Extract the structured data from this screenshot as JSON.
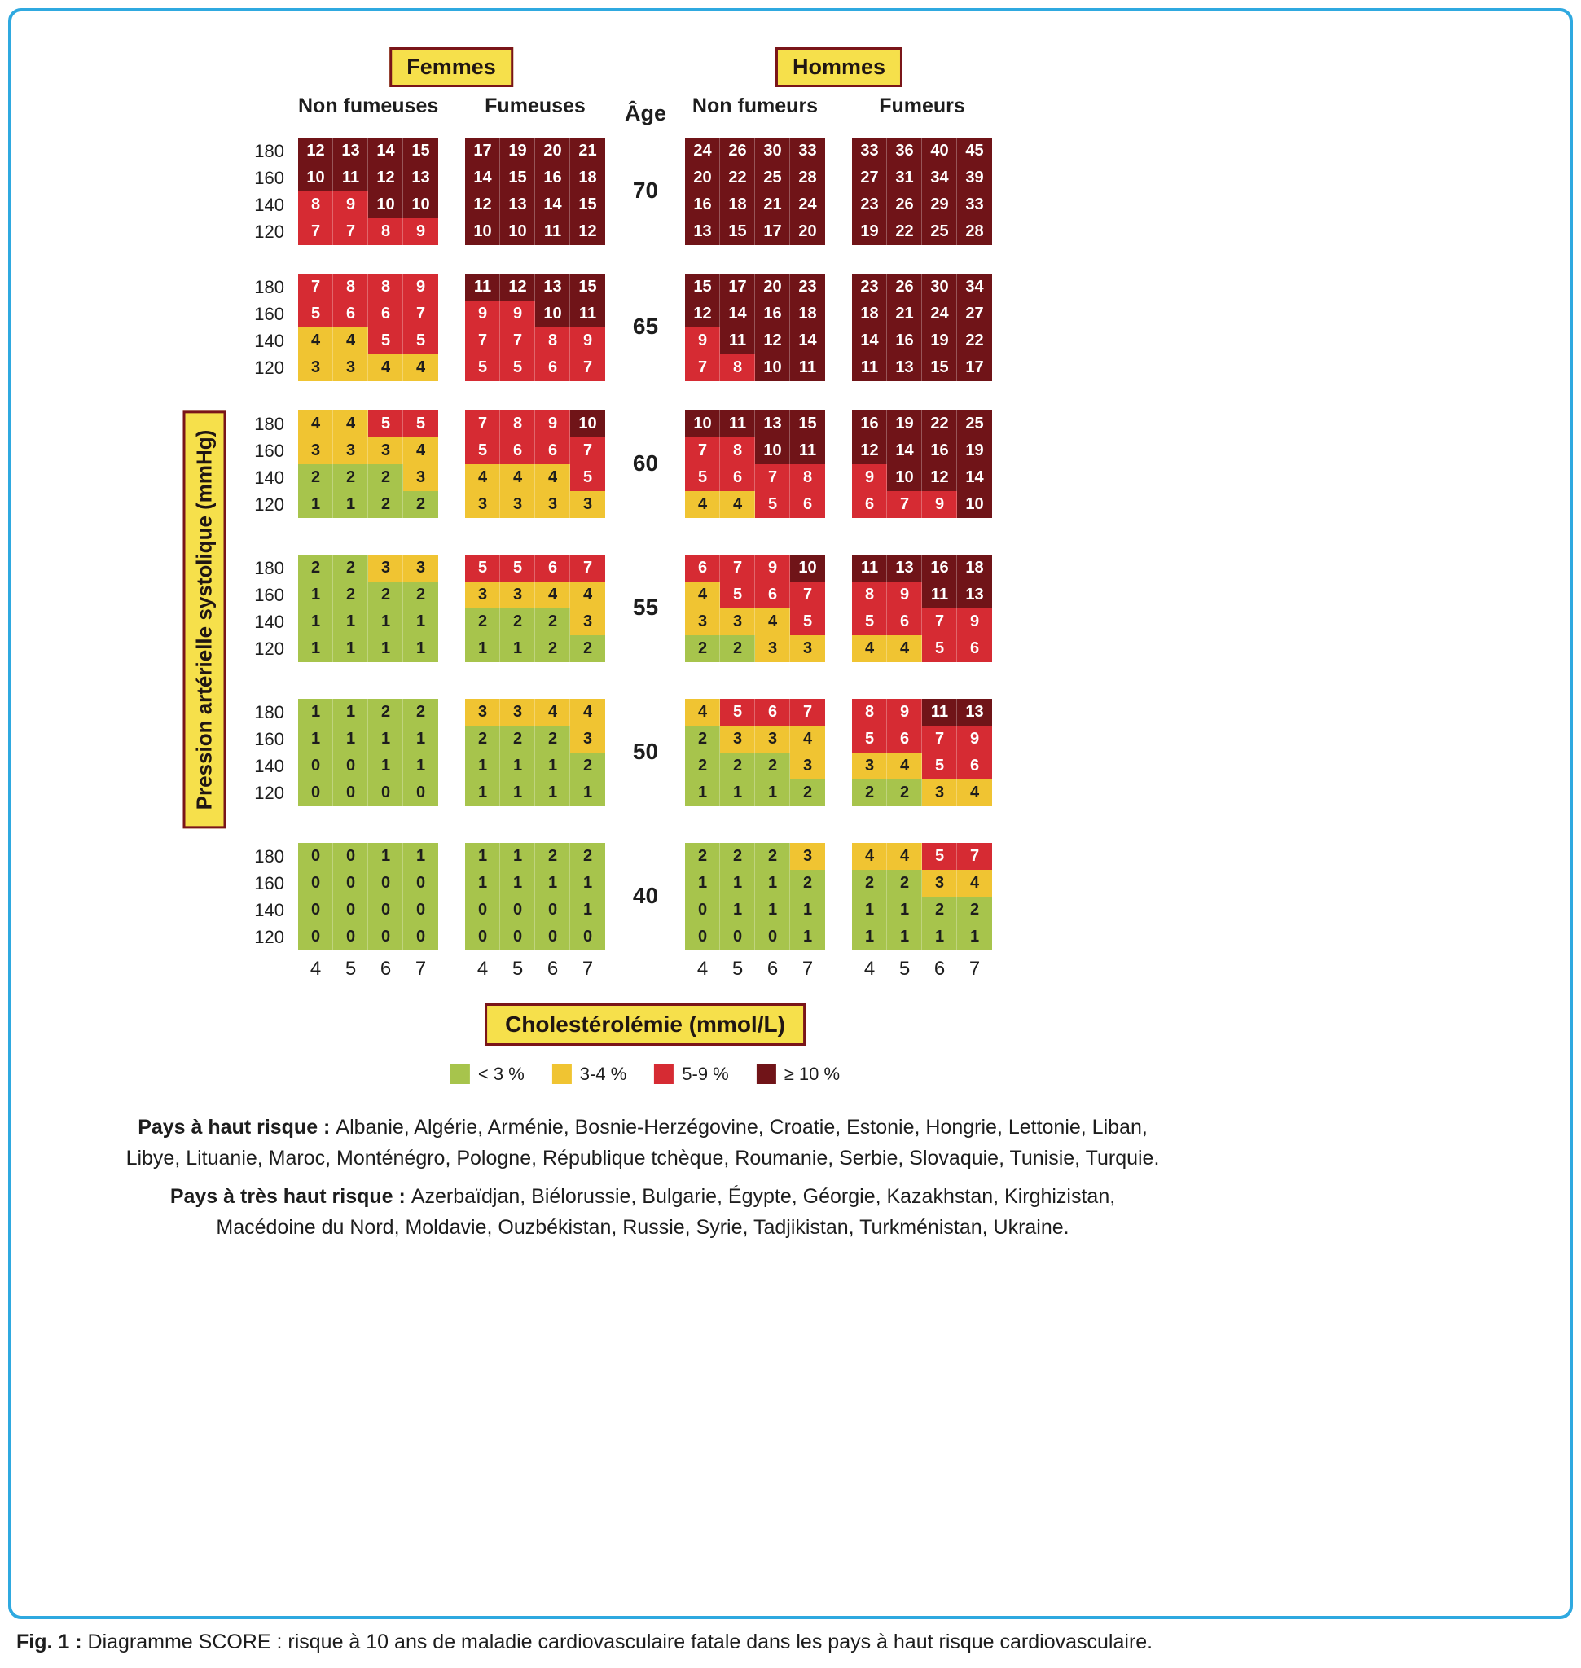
{
  "header": {
    "femmes": "Femmes",
    "hommes": "Hommes",
    "age": "Âge",
    "columns": [
      "Non fumeuses",
      "Fumeuses",
      "Non fumeurs",
      "Fumeurs"
    ]
  },
  "axes": {
    "y_label": "Pression artérielle systolique (mmHg)",
    "x_label": "Cholestérolémie (mmol/L)"
  },
  "legend": {
    "items": [
      {
        "label": "< 3 %",
        "color": "#a7c44c",
        "text_color": "#1d1d1d"
      },
      {
        "label": "3-4 %",
        "color": "#f0c432",
        "text_color": "#1d1d1d"
      },
      {
        "label": "5-9 %",
        "color": "#d62b33",
        "text_color": "#ffffff"
      },
      {
        "label": "≥ 10 %",
        "color": "#701418",
        "text_color": "#ffffff"
      }
    ]
  },
  "chart_data": {
    "type": "heatmap",
    "title": "Diagramme SCORE : risque à 10 ans de maladie cardiovasculaire fatale",
    "x_label": "Cholestérolémie (mmol/L)",
    "y_label": "Pression artérielle systolique (mmHg)",
    "cholesterol_mmol_l": [
      4,
      5,
      6,
      7
    ],
    "systolic_bp_mmhg": [
      180,
      160,
      140,
      120
    ],
    "ages": [
      70,
      65,
      60,
      55,
      50,
      40
    ],
    "groups": [
      "Femmes non fumeuses",
      "Femmes fumeuses",
      "Hommes non fumeurs",
      "Hommes fumeurs"
    ],
    "risk_bins": [
      "< 3 %",
      "3-4 %",
      "5-9 %",
      "≥ 10 %"
    ],
    "values": [
      {
        "age": 70,
        "grids": [
          [
            [
              12,
              13,
              14,
              15
            ],
            [
              10,
              11,
              12,
              13
            ],
            [
              8,
              9,
              10,
              10
            ],
            [
              7,
              7,
              8,
              9
            ]
          ],
          [
            [
              17,
              19,
              20,
              21
            ],
            [
              14,
              15,
              16,
              18
            ],
            [
              12,
              13,
              14,
              15
            ],
            [
              10,
              10,
              11,
              12
            ]
          ],
          [
            [
              24,
              26,
              30,
              33
            ],
            [
              20,
              22,
              25,
              28
            ],
            [
              16,
              18,
              21,
              24
            ],
            [
              13,
              15,
              17,
              20
            ]
          ],
          [
            [
              33,
              36,
              40,
              45
            ],
            [
              27,
              31,
              34,
              39
            ],
            [
              23,
              26,
              29,
              33
            ],
            [
              19,
              22,
              25,
              28
            ]
          ]
        ]
      },
      {
        "age": 65,
        "grids": [
          [
            [
              7,
              8,
              8,
              9
            ],
            [
              5,
              6,
              6,
              7
            ],
            [
              4,
              4,
              5,
              5
            ],
            [
              3,
              3,
              4,
              4
            ]
          ],
          [
            [
              11,
              12,
              13,
              15
            ],
            [
              9,
              9,
              10,
              11
            ],
            [
              7,
              7,
              8,
              9
            ],
            [
              5,
              5,
              6,
              7
            ]
          ],
          [
            [
              15,
              17,
              20,
              23
            ],
            [
              12,
              14,
              16,
              18
            ],
            [
              9,
              11,
              12,
              14
            ],
            [
              7,
              8,
              10,
              11
            ]
          ],
          [
            [
              23,
              26,
              30,
              34
            ],
            [
              18,
              21,
              24,
              27
            ],
            [
              14,
              16,
              19,
              22
            ],
            [
              11,
              13,
              15,
              17
            ]
          ]
        ]
      },
      {
        "age": 60,
        "grids": [
          [
            [
              4,
              4,
              5,
              5
            ],
            [
              3,
              3,
              3,
              4
            ],
            [
              2,
              2,
              2,
              3
            ],
            [
              1,
              1,
              2,
              2
            ]
          ],
          [
            [
              7,
              8,
              9,
              10
            ],
            [
              5,
              6,
              6,
              7
            ],
            [
              4,
              4,
              4,
              5
            ],
            [
              3,
              3,
              3,
              3
            ]
          ],
          [
            [
              10,
              11,
              13,
              15
            ],
            [
              7,
              8,
              10,
              11
            ],
            [
              5,
              6,
              7,
              8
            ],
            [
              4,
              4,
              5,
              6
            ]
          ],
          [
            [
              16,
              19,
              22,
              25
            ],
            [
              12,
              14,
              16,
              19
            ],
            [
              9,
              10,
              12,
              14
            ],
            [
              6,
              7,
              9,
              10
            ]
          ]
        ]
      },
      {
        "age": 55,
        "grids": [
          [
            [
              2,
              2,
              3,
              3
            ],
            [
              1,
              2,
              2,
              2
            ],
            [
              1,
              1,
              1,
              1
            ],
            [
              1,
              1,
              1,
              1
            ]
          ],
          [
            [
              5,
              5,
              6,
              7
            ],
            [
              3,
              3,
              4,
              4
            ],
            [
              2,
              2,
              2,
              3
            ],
            [
              1,
              1,
              2,
              2
            ]
          ],
          [
            [
              6,
              7,
              9,
              10
            ],
            [
              4,
              5,
              6,
              7
            ],
            [
              3,
              3,
              4,
              5
            ],
            [
              2,
              2,
              3,
              3
            ]
          ],
          [
            [
              11,
              13,
              16,
              18
            ],
            [
              8,
              9,
              11,
              13
            ],
            [
              5,
              6,
              7,
              9
            ],
            [
              4,
              4,
              5,
              6
            ]
          ]
        ]
      },
      {
        "age": 50,
        "grids": [
          [
            [
              1,
              1,
              2,
              2
            ],
            [
              1,
              1,
              1,
              1
            ],
            [
              0,
              0,
              1,
              1
            ],
            [
              0,
              0,
              0,
              0
            ]
          ],
          [
            [
              3,
              3,
              4,
              4
            ],
            [
              2,
              2,
              2,
              3
            ],
            [
              1,
              1,
              1,
              2
            ],
            [
              1,
              1,
              1,
              1
            ]
          ],
          [
            [
              4,
              5,
              6,
              7
            ],
            [
              2,
              3,
              3,
              4
            ],
            [
              2,
              2,
              2,
              3
            ],
            [
              1,
              1,
              1,
              2
            ]
          ],
          [
            [
              8,
              9,
              11,
              13
            ],
            [
              5,
              6,
              7,
              9
            ],
            [
              3,
              4,
              5,
              6
            ],
            [
              2,
              2,
              3,
              4
            ]
          ]
        ]
      },
      {
        "age": 40,
        "grids": [
          [
            [
              0,
              0,
              1,
              1
            ],
            [
              0,
              0,
              0,
              0
            ],
            [
              0,
              0,
              0,
              0
            ],
            [
              0,
              0,
              0,
              0
            ]
          ],
          [
            [
              1,
              1,
              2,
              2
            ],
            [
              1,
              1,
              1,
              1
            ],
            [
              0,
              0,
              0,
              1
            ],
            [
              0,
              0,
              0,
              0
            ]
          ],
          [
            [
              2,
              2,
              2,
              3
            ],
            [
              1,
              1,
              1,
              2
            ],
            [
              0,
              1,
              1,
              1
            ],
            [
              0,
              0,
              0,
              1
            ]
          ],
          [
            [
              4,
              4,
              5,
              7
            ],
            [
              2,
              2,
              3,
              4
            ],
            [
              1,
              1,
              2,
              2
            ],
            [
              1,
              1,
              1,
              1
            ]
          ]
        ]
      }
    ]
  },
  "notes": {
    "high_risk": {
      "label": "Pays à haut risque :",
      "text": "Albanie, Algérie, Arménie, Bosnie-Herzégovine, Croatie, Estonie, Hongrie, Lettonie, Liban, Libye, Lituanie, Maroc, Monténégro, Pologne, République tchèque, Roumanie, Serbie, Slovaquie, Tunisie, Turquie."
    },
    "very_high_risk": {
      "label": "Pays à très haut risque :",
      "text": "Azerbaïdjan, Biélorussie, Bulgarie, Égypte, Géorgie, Kazakhstan, Kirghizistan, Macédoine du Nord, Moldavie, Ouzbékistan, Russie, Syrie, Tadjikistan, Turkménistan, Ukraine."
    }
  },
  "caption": {
    "label": "Fig. 1 :",
    "text": " Diagramme SCORE : risque à 10 ans de maladie cardiovasculaire fatale dans les pays à haut risque cardiovasculaire."
  },
  "colors": {
    "frame_border": "#2fa9e0",
    "badge_background": "#f6e04b",
    "badge_border": "#7a1519"
  }
}
